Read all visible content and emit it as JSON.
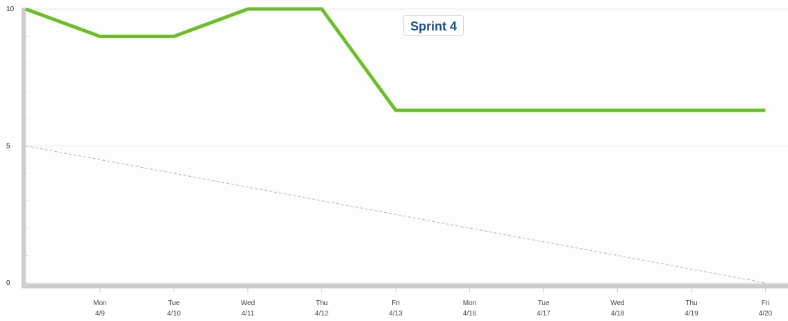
{
  "chart_data": {
    "type": "line",
    "title": "Sprint 4",
    "xlabel": "",
    "ylabel": "",
    "ylim": [
      0,
      10
    ],
    "yticks": [
      "0",
      "5",
      "10"
    ],
    "categories": [
      {
        "day": "Mon",
        "date": "4/9"
      },
      {
        "day": "Tue",
        "date": "4/10"
      },
      {
        "day": "Wed",
        "date": "4/11"
      },
      {
        "day": "Thu",
        "date": "4/12"
      },
      {
        "day": "Fri",
        "date": "4/13"
      },
      {
        "day": "Mon",
        "date": "4/16"
      },
      {
        "day": "Tue",
        "date": "4/17"
      },
      {
        "day": "Wed",
        "date": "4/18"
      },
      {
        "day": "Thu",
        "date": "4/19"
      },
      {
        "day": "Fri",
        "date": "4/20"
      }
    ],
    "series": [
      {
        "role": "actual",
        "color": "#6abf2a",
        "x": [
          0,
          1,
          2,
          3,
          4,
          5,
          10
        ],
        "values": [
          10,
          9,
          9,
          10,
          10,
          6.3,
          6.3
        ]
      },
      {
        "role": "ideal",
        "color": "#b0b0b0",
        "dashed": true,
        "x": [
          0,
          10
        ],
        "values": [
          5,
          0
        ]
      }
    ],
    "grid": true,
    "legend": "none"
  },
  "colors": {
    "axis": "#cccccc",
    "grid": "#e8e8e8",
    "title": "#1f4e8c"
  }
}
